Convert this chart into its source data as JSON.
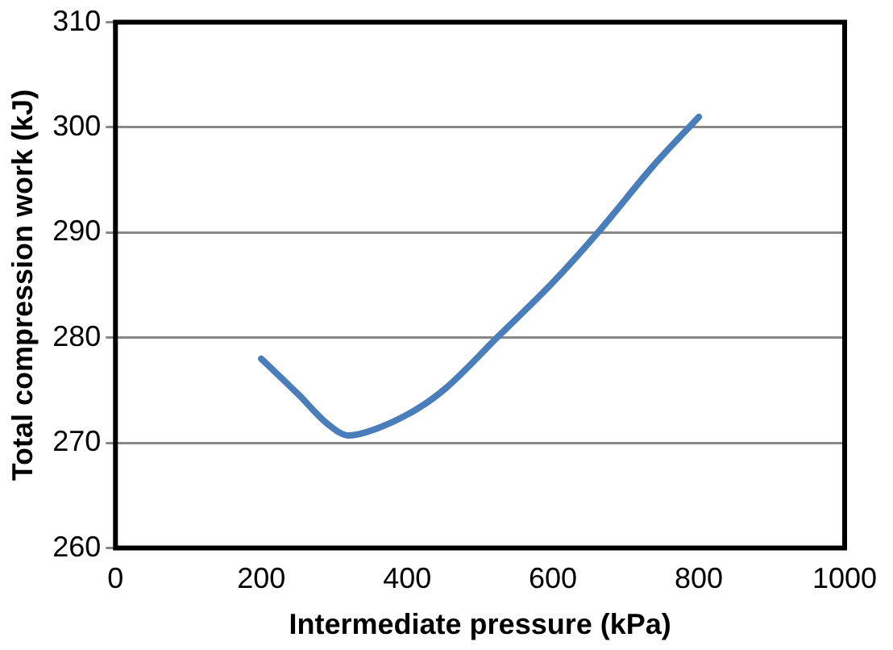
{
  "chart_data": {
    "type": "line",
    "xlabel": "Intermediate pressure (kPa)",
    "ylabel": "Total compression work (kJ)",
    "x": [
      200,
      251,
      291,
      320,
      356,
      413,
      453,
      526,
      599,
      664,
      737,
      800
    ],
    "series": [
      {
        "color": "#4a7ebb",
        "values": [
          278,
          274.6,
          271.8,
          270.7,
          271.3,
          273.2,
          275.2,
          280.2,
          285.2,
          290.2,
          296.3,
          301
        ]
      }
    ],
    "xlim": [
      0,
      1000
    ],
    "xticks": [
      0,
      200,
      400,
      600,
      800,
      1000
    ],
    "ylim": [
      260,
      310
    ],
    "yticks": [
      260,
      270,
      280,
      290,
      300,
      310
    ],
    "grid": "y",
    "legend": false,
    "marker": "none",
    "line_style": "solid"
  }
}
